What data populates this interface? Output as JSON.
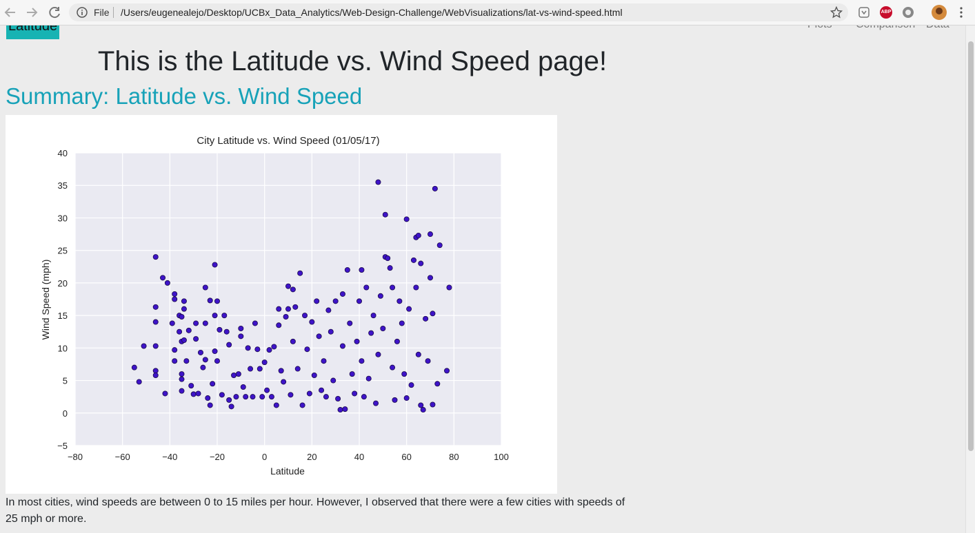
{
  "browser": {
    "file_label": "File",
    "url": "/Users/eugenealejo/Desktop/UCBx_Data_Analytics/Web-Design-Challenge/WebVisualizations/lat-vs-wind-speed.html",
    "extension_label": "ABP"
  },
  "nav": {
    "brand": "Latitude",
    "items": [
      "Plots",
      "Comparison",
      "Data"
    ]
  },
  "heading": "This is the Latitude vs. Wind Speed page!",
  "summary_title": "Summary: Latitude vs. Wind Speed",
  "chart_data": {
    "type": "scatter",
    "title": "City Latitude vs. Wind Speed (01/05/17)",
    "x_label": "Latitude",
    "y_label": "Wind Speed (mph)",
    "color": "#3e14c8",
    "edge_color": "#1a0a4a",
    "grid": true,
    "background": "#eaeaf2",
    "xlim": [
      -80,
      100
    ],
    "ylim": [
      -5,
      40
    ],
    "xticks": [
      {
        "value": -80,
        "label": "−80"
      },
      {
        "value": -60,
        "label": "−60"
      },
      {
        "value": -40,
        "label": "−40"
      },
      {
        "value": -20,
        "label": "−20"
      },
      0,
      20,
      40,
      60,
      80,
      100
    ],
    "yticks": [
      {
        "value": -5,
        "label": "−5"
      },
      0,
      5,
      10,
      15,
      20,
      25,
      30,
      35,
      40
    ],
    "x": [
      -55,
      -53,
      -51,
      -46,
      -46,
      -46,
      -46,
      -46,
      -46,
      -43,
      -42,
      -41,
      -39,
      -38,
      -38,
      -38,
      -38,
      -36,
      -36,
      -35,
      -35,
      -35,
      -35,
      -35,
      -34,
      -34,
      -34,
      -33,
      -32,
      -31,
      -30,
      -29,
      -29,
      -28,
      -27,
      -26,
      -25,
      -25,
      -25,
      -24,
      -23,
      -23,
      -22,
      -21,
      -21,
      -21,
      -20,
      -20,
      -19,
      -18,
      -17,
      -16,
      -15,
      -15,
      -14,
      -13,
      -12,
      -11,
      -10,
      -10,
      -9,
      -8,
      -7,
      -6,
      -5,
      -4,
      -3,
      -2,
      -1,
      0,
      1,
      2,
      3,
      4,
      5,
      6,
      6,
      7,
      8,
      9,
      10,
      10,
      11,
      12,
      12,
      13,
      14,
      15,
      16,
      17,
      18,
      19,
      20,
      21,
      22,
      23,
      24,
      25,
      26,
      27,
      28,
      29,
      30,
      31,
      32,
      33,
      33,
      34,
      35,
      36,
      37,
      38,
      39,
      40,
      41,
      41,
      42,
      43,
      44,
      45,
      46,
      47,
      48,
      48,
      49,
      50,
      51,
      51,
      52,
      53,
      54,
      54,
      55,
      56,
      57,
      58,
      59,
      60,
      60,
      61,
      62,
      63,
      64,
      64,
      65,
      65,
      66,
      66,
      67,
      68,
      69,
      70,
      70,
      71,
      71,
      72,
      73,
      74,
      77,
      78
    ],
    "values": [
      7,
      4.8,
      10.3,
      24,
      16.3,
      14,
      10.3,
      6.5,
      5.8,
      20.8,
      3,
      20,
      13.8,
      18.3,
      17.5,
      9.7,
      8,
      12.5,
      15,
      14.8,
      11,
      6,
      3.4,
      5.2,
      17.2,
      16,
      11.2,
      8,
      12.7,
      4.2,
      2.9,
      13.8,
      11.4,
      3,
      9.3,
      7,
      19.3,
      13.8,
      8.2,
      2.3,
      1.2,
      17.3,
      4.5,
      22.8,
      15,
      9.5,
      8,
      17.2,
      12.8,
      2.8,
      15,
      12.5,
      10.5,
      2,
      1,
      5.8,
      2.5,
      6,
      13,
      11.8,
      4,
      2.5,
      10,
      6.8,
      2.5,
      13.8,
      9.8,
      6.8,
      2.5,
      7.8,
      3.5,
      9.7,
      2.5,
      10.2,
      1.2,
      13.5,
      16,
      6.5,
      4.8,
      14.8,
      19.5,
      16,
      2.8,
      19,
      11,
      16.3,
      6.8,
      21.5,
      1.2,
      15,
      9.8,
      3,
      14,
      5.8,
      17.2,
      11.8,
      3.5,
      8,
      2.5,
      15.8,
      12.5,
      5,
      17.2,
      2.2,
      0.5,
      18.3,
      10.3,
      0.6,
      22,
      13.8,
      6,
      3,
      11,
      17.2,
      22,
      8,
      2.5,
      19.3,
      5.3,
      12.3,
      15,
      1.5,
      35.5,
      9,
      18,
      13,
      30.5,
      24,
      23.8,
      22.3,
      19.3,
      7,
      2,
      11,
      17.2,
      13.8,
      6,
      29.8,
      2.3,
      16,
      4.3,
      23.5,
      27,
      19.3,
      27.3,
      9,
      23,
      1.2,
      0.5,
      14.5,
      8,
      27.5,
      20.8,
      15.3,
      1.3,
      34.5,
      4.5,
      25.8,
      6.5,
      19.3
    ]
  },
  "paragraph": "In most cities, wind speeds are between 0 to 15 miles per hour. However, I observed that there were a few cities with speeds of 25 mph or more."
}
